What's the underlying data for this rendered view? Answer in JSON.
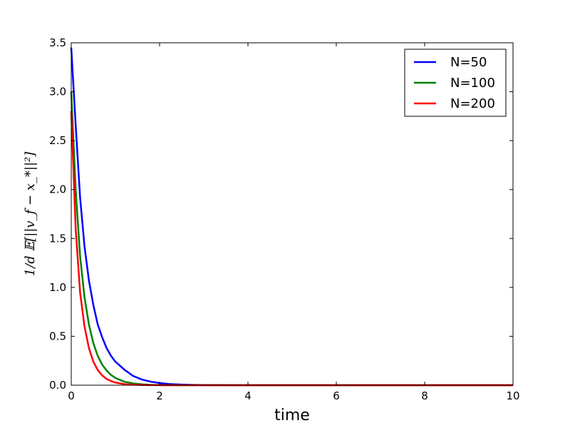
{
  "chart_data": {
    "type": "line",
    "title": "",
    "xlabel": "time",
    "ylabel": "1/d 𝔼[||v_f − x_*||²]",
    "xlim": [
      0,
      10
    ],
    "ylim": [
      0,
      3.5
    ],
    "x_ticks": [
      "0",
      "2",
      "4",
      "6",
      "8",
      "10"
    ],
    "y_ticks": [
      "0.0",
      "0.5",
      "1.0",
      "1.5",
      "2.0",
      "2.5",
      "3.0",
      "3.5"
    ],
    "grid": false,
    "legend_position": "top-right",
    "x": [
      0,
      0.1,
      0.2,
      0.3,
      0.4,
      0.5,
      0.6,
      0.7,
      0.8,
      0.9,
      1.0,
      1.2,
      1.4,
      1.6,
      1.8,
      2.0,
      2.2,
      2.4,
      2.6,
      2.8,
      3.0,
      4,
      5,
      6,
      7,
      8,
      9,
      10
    ],
    "series": [
      {
        "name": "N=50",
        "color": "#0000ff",
        "values": [
          3.45,
          2.66,
          1.92,
          1.42,
          1.07,
          0.82,
          0.62,
          0.49,
          0.38,
          0.3,
          0.24,
          0.16,
          0.095,
          0.058,
          0.036,
          0.022,
          0.013,
          0.008,
          0.005,
          0.003,
          0.002,
          0.0,
          0.0,
          0.0,
          0.0,
          0.0,
          0.0,
          0.0
        ]
      },
      {
        "name": "N=100",
        "color": "#008000",
        "values": [
          3.0,
          2.0,
          1.32,
          0.9,
          0.62,
          0.43,
          0.3,
          0.21,
          0.15,
          0.105,
          0.074,
          0.036,
          0.018,
          0.009,
          0.004,
          0.002,
          0.001,
          0.0,
          0.0,
          0.0,
          0.0,
          0.0,
          0.0,
          0.0,
          0.0,
          0.0,
          0.0,
          0.0
        ]
      },
      {
        "name": "N=200",
        "color": "#ff0000",
        "values": [
          2.8,
          1.6,
          0.95,
          0.6,
          0.38,
          0.24,
          0.155,
          0.1,
          0.064,
          0.042,
          0.027,
          0.011,
          0.005,
          0.002,
          0.001,
          0.0,
          0.0,
          0.0,
          0.0,
          0.0,
          0.0,
          0.0,
          0.0,
          0.0,
          0.0,
          0.0,
          0.0,
          0.0
        ]
      }
    ]
  }
}
